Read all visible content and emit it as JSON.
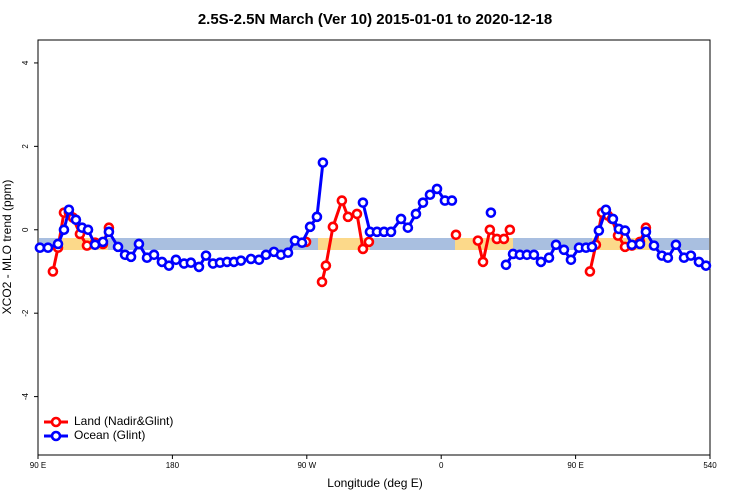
{
  "chart_data": {
    "type": "line",
    "title": "2.5S-2.5N March (Ver 10)   2015-01-01 to 2020-12-18",
    "x_label": "Longitude (deg E)",
    "y_label": "XCO2 - MLO trend (ppm)",
    "xlim": [
      90,
      540
    ],
    "ylim": [
      -5.4,
      4.55
    ],
    "xticks": [
      {
        "value": 90,
        "label": "90 E"
      },
      180,
      {
        "value": 270,
        "label": "90 W"
      },
      {
        "value": 360,
        "label": "0"
      },
      {
        "value": 450,
        "label": "90 E"
      },
      540
    ],
    "yticks": [
      -4,
      -2,
      0,
      2,
      4
    ],
    "legend": "bottom-left",
    "series": [
      {
        "name": "Land (Nadir&Glint)",
        "color": "#ff0000",
        "x": [
          100.0,
          103.4,
          107.4,
          110.7,
          113.4,
          118.1,
          122.8,
          128.2,
          133.5,
          137.5,
          null,
          269.5,
          null,
          280.2,
          282.8,
          287.5,
          293.5,
          297.6,
          303.6,
          307.6,
          311.6,
          null,
          369.9,
          null,
          384.6,
          388.0,
          392.6,
          397.3,
          402.0,
          406.0,
          null,
          459.6,
          463.6,
          467.7,
          471.7,
          474.3,
          478.4,
          483.1,
          487.7,
          493.1,
          497.1
        ],
        "values": [
          -1.0,
          -0.43,
          0.41,
          0.41,
          0.29,
          -0.1,
          -0.38,
          -0.31,
          -0.34,
          0.05,
          null,
          -0.29,
          null,
          -1.25,
          -0.86,
          0.07,
          0.7,
          0.31,
          0.38,
          -0.46,
          -0.29,
          null,
          -0.12,
          null,
          -0.26,
          -0.77,
          0,
          -0.22,
          -0.22,
          0,
          null,
          -1.0,
          -0.36,
          0.41,
          0.34,
          0.26,
          -0.14,
          -0.41,
          -0.38,
          -0.29,
          0.05
        ]
      },
      {
        "name": "Ocean (Glint)",
        "color": "#0000ff",
        "x": [
          91.3,
          96.7,
          103.4,
          107.4,
          110.7,
          115.4,
          119.5,
          123.5,
          128.2,
          133.5,
          137.5,
          143.6,
          148.3,
          152.3,
          157.6,
          163.0,
          167.7,
          173.0,
          177.7,
          182.4,
          187.8,
          192.4,
          197.8,
          202.5,
          207.2,
          211.9,
          216.6,
          221.2,
          225.9,
          232.6,
          238.0,
          242.7,
          248.0,
          252.7,
          257.4,
          262.1,
          266.8,
          272.2,
          276.8,
          280.8,
          null,
          307.6,
          312.3,
          317.0,
          321.7,
          326.4,
          333.1,
          337.7,
          343.1,
          347.8,
          352.5,
          357.2,
          362.5,
          367.2,
          null,
          393.3,
          null,
          403.4,
          408.1,
          412.7,
          417.4,
          422.1,
          426.8,
          432.2,
          436.9,
          442.2,
          446.9,
          452.3,
          457.0,
          461.0,
          465.6,
          470.3,
          475.0,
          479.0,
          483.1,
          487.7,
          493.1,
          497.1,
          502.5,
          507.8,
          511.8,
          517.2,
          522.6,
          527.2,
          532.6,
          537.3
        ],
        "values": [
          -0.43,
          -0.43,
          -0.34,
          0,
          0.48,
          0.24,
          0.05,
          0,
          -0.36,
          -0.29,
          -0.05,
          -0.41,
          -0.6,
          -0.65,
          -0.34,
          -0.67,
          -0.6,
          -0.77,
          -0.86,
          -0.72,
          -0.81,
          -0.79,
          -0.89,
          -0.62,
          -0.81,
          -0.79,
          -0.77,
          -0.77,
          -0.74,
          -0.7,
          -0.72,
          -0.6,
          -0.53,
          -0.6,
          -0.55,
          -0.26,
          -0.31,
          0.07,
          0.31,
          1.61,
          null,
          0.65,
          -0.05,
          -0.05,
          -0.05,
          -0.05,
          0.26,
          0.05,
          0.38,
          0.65,
          0.84,
          0.98,
          0.7,
          0.7,
          null,
          0.41,
          null,
          -0.84,
          -0.58,
          -0.6,
          -0.6,
          -0.6,
          -0.77,
          -0.67,
          -0.36,
          -0.48,
          -0.72,
          -0.43,
          -0.43,
          -0.41,
          -0.02,
          0.48,
          0.26,
          0.02,
          -0.02,
          -0.36,
          -0.34,
          -0.05,
          -0.38,
          -0.62,
          -0.67,
          -0.36,
          -0.67,
          -0.62,
          -0.77,
          -0.86
        ]
      }
    ]
  }
}
